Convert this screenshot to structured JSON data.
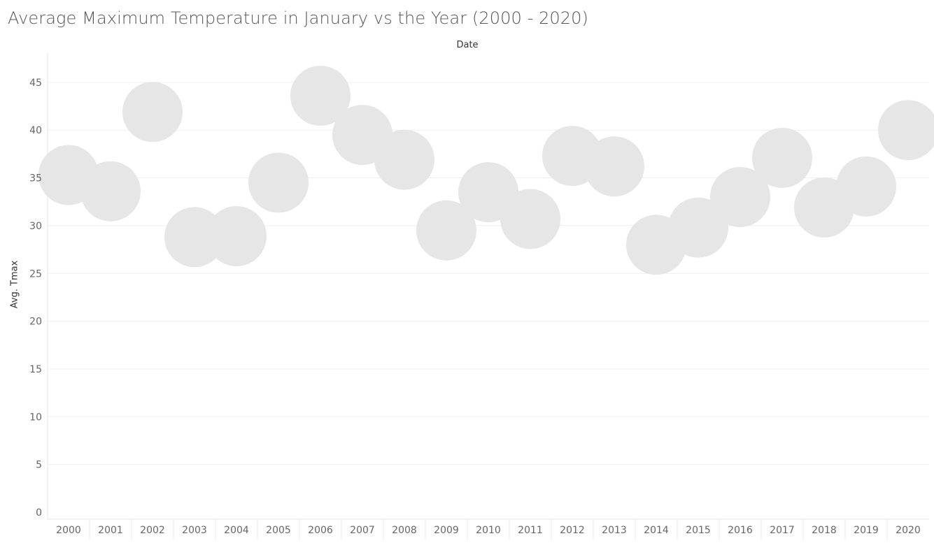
{
  "chart_data": {
    "type": "scatter",
    "title": "Average Maximum Temperature in January vs the Year (2000 - 2020)",
    "xlabel": "Date",
    "ylabel": "Avg. Tmax",
    "categories": [
      "2000",
      "2001",
      "2002",
      "2003",
      "2004",
      "2005",
      "2006",
      "2007",
      "2008",
      "2009",
      "2010",
      "2011",
      "2012",
      "2013",
      "2014",
      "2015",
      "2016",
      "2017",
      "2018",
      "2019",
      "2020"
    ],
    "values": [
      35.3,
      33.6,
      41.9,
      28.8,
      28.9,
      34.5,
      43.6,
      39.5,
      36.9,
      29.5,
      33.5,
      30.7,
      37.3,
      36.2,
      28.0,
      29.8,
      33.0,
      37.1,
      31.9,
      34.1,
      40.0
    ],
    "y_ticks": [
      "0",
      "5",
      "10",
      "15",
      "20",
      "25",
      "30",
      "35",
      "40",
      "45"
    ],
    "ylim": [
      0,
      48
    ],
    "grid": true,
    "marker_color": "#e6e6e6",
    "legend": "none"
  }
}
